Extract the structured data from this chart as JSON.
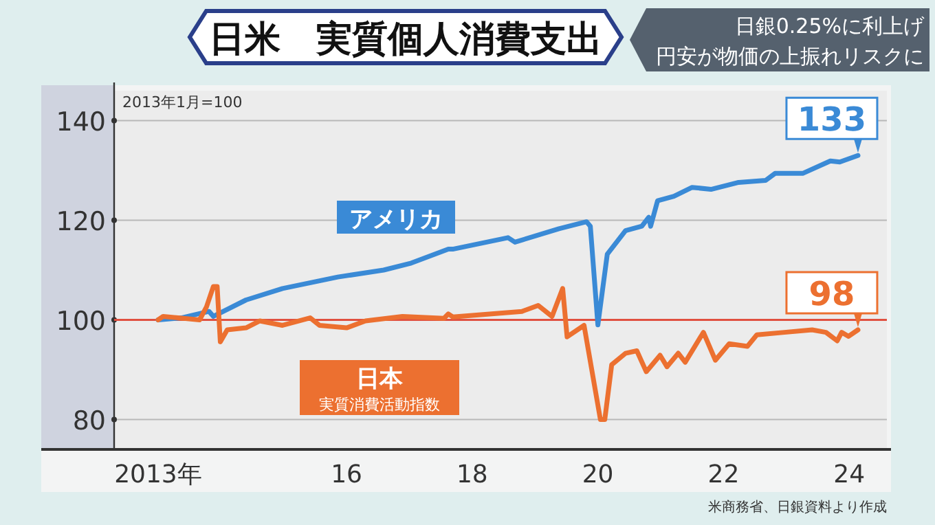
{
  "chart_data": {
    "type": "line",
    "title": "日米　実質個人消費支出",
    "subtitle": "日銀0.25%に利上げ",
    "annotations": [
      "2013年1月=100",
      "実質消費活動指数",
      "円安が物価の上振れリスクに",
      "米商務省、日銀資料より作成",
      {
        "text": "133",
        "x": 2024.14,
        "y": 133
      },
      {
        "text": "98",
        "x": 2024.14,
        "y": 98
      }
    ],
    "xlim": [
      2012.3,
      2024.6
    ],
    "ylim": [
      74,
      146
    ],
    "xticks": [
      {
        "value": 2013,
        "label": "2013年"
      },
      {
        "value": 2016,
        "label": "16"
      },
      {
        "value": 2018,
        "label": "18"
      },
      {
        "value": 2020,
        "label": "20"
      },
      {
        "value": 2022,
        "label": "22"
      },
      {
        "value": 2024,
        "label": "24"
      }
    ],
    "yticks": [
      80,
      100,
      120,
      140
    ],
    "grid": "y",
    "ref_lines": [
      {
        "axis": "y",
        "value": 100,
        "color": "#e05040"
      }
    ],
    "series": [
      {
        "name": "アメリカ",
        "color": "#3a8ad6",
        "x": [
          2013.0,
          2013.37,
          2013.81,
          2013.88,
          2014.4,
          2014.98,
          2015.86,
          2016.59,
          2017.03,
          2017.62,
          2017.69,
          2018.57,
          2018.68,
          2019.38,
          2019.82,
          2019.88,
          2020.0,
          2020.15,
          2020.44,
          2020.7,
          2020.81,
          2020.84,
          2020.95,
          2021.21,
          2021.5,
          2021.8,
          2022.24,
          2022.67,
          2022.82,
          2023.26,
          2023.7,
          2023.85,
          2024.14
        ],
        "values": [
          100,
          100.4,
          101.7,
          100.7,
          104,
          106.3,
          108.6,
          110,
          111.4,
          114.2,
          114.2,
          116.5,
          115.6,
          118.3,
          119.7,
          118.8,
          99,
          113.2,
          117.9,
          118.8,
          120.6,
          118.8,
          123.9,
          124.8,
          126.6,
          126.2,
          127.6,
          128,
          129.4,
          129.4,
          131.9,
          131.7,
          133
        ]
      },
      {
        "name": "日本",
        "color": "#ec7030",
        "x": [
          2013.0,
          2013.08,
          2013.66,
          2013.77,
          2013.88,
          2013.94,
          2013.99,
          2014.1,
          2014.4,
          2014.62,
          2014.98,
          2015.42,
          2015.57,
          2016.0,
          2016.3,
          2016.89,
          2017.55,
          2017.62,
          2017.69,
          2018.79,
          2019.05,
          2019.27,
          2019.44,
          2019.51,
          2019.78,
          2020.04,
          2020.11,
          2020.22,
          2020.44,
          2020.62,
          2020.77,
          2020.99,
          2021.1,
          2021.28,
          2021.39,
          2021.68,
          2021.87,
          2022.09,
          2022.38,
          2022.53,
          2022.97,
          2023.41,
          2023.63,
          2023.81,
          2023.88,
          2023.99,
          2024.14
        ],
        "values": [
          100,
          100.7,
          100,
          102.6,
          106.7,
          106.7,
          95.6,
          98,
          98.4,
          99.8,
          98.9,
          100.4,
          98.9,
          98.4,
          99.8,
          100.7,
          100.3,
          101.2,
          100.6,
          101.7,
          102.9,
          100.7,
          106.3,
          96.6,
          98.9,
          80,
          80,
          91,
          93.3,
          93.8,
          89.6,
          92.9,
          90.6,
          93.3,
          91.5,
          97.5,
          91.9,
          95.2,
          94.7,
          97,
          97.5,
          98,
          97.5,
          95.8,
          97.5,
          96.7,
          98
        ]
      }
    ]
  }
}
